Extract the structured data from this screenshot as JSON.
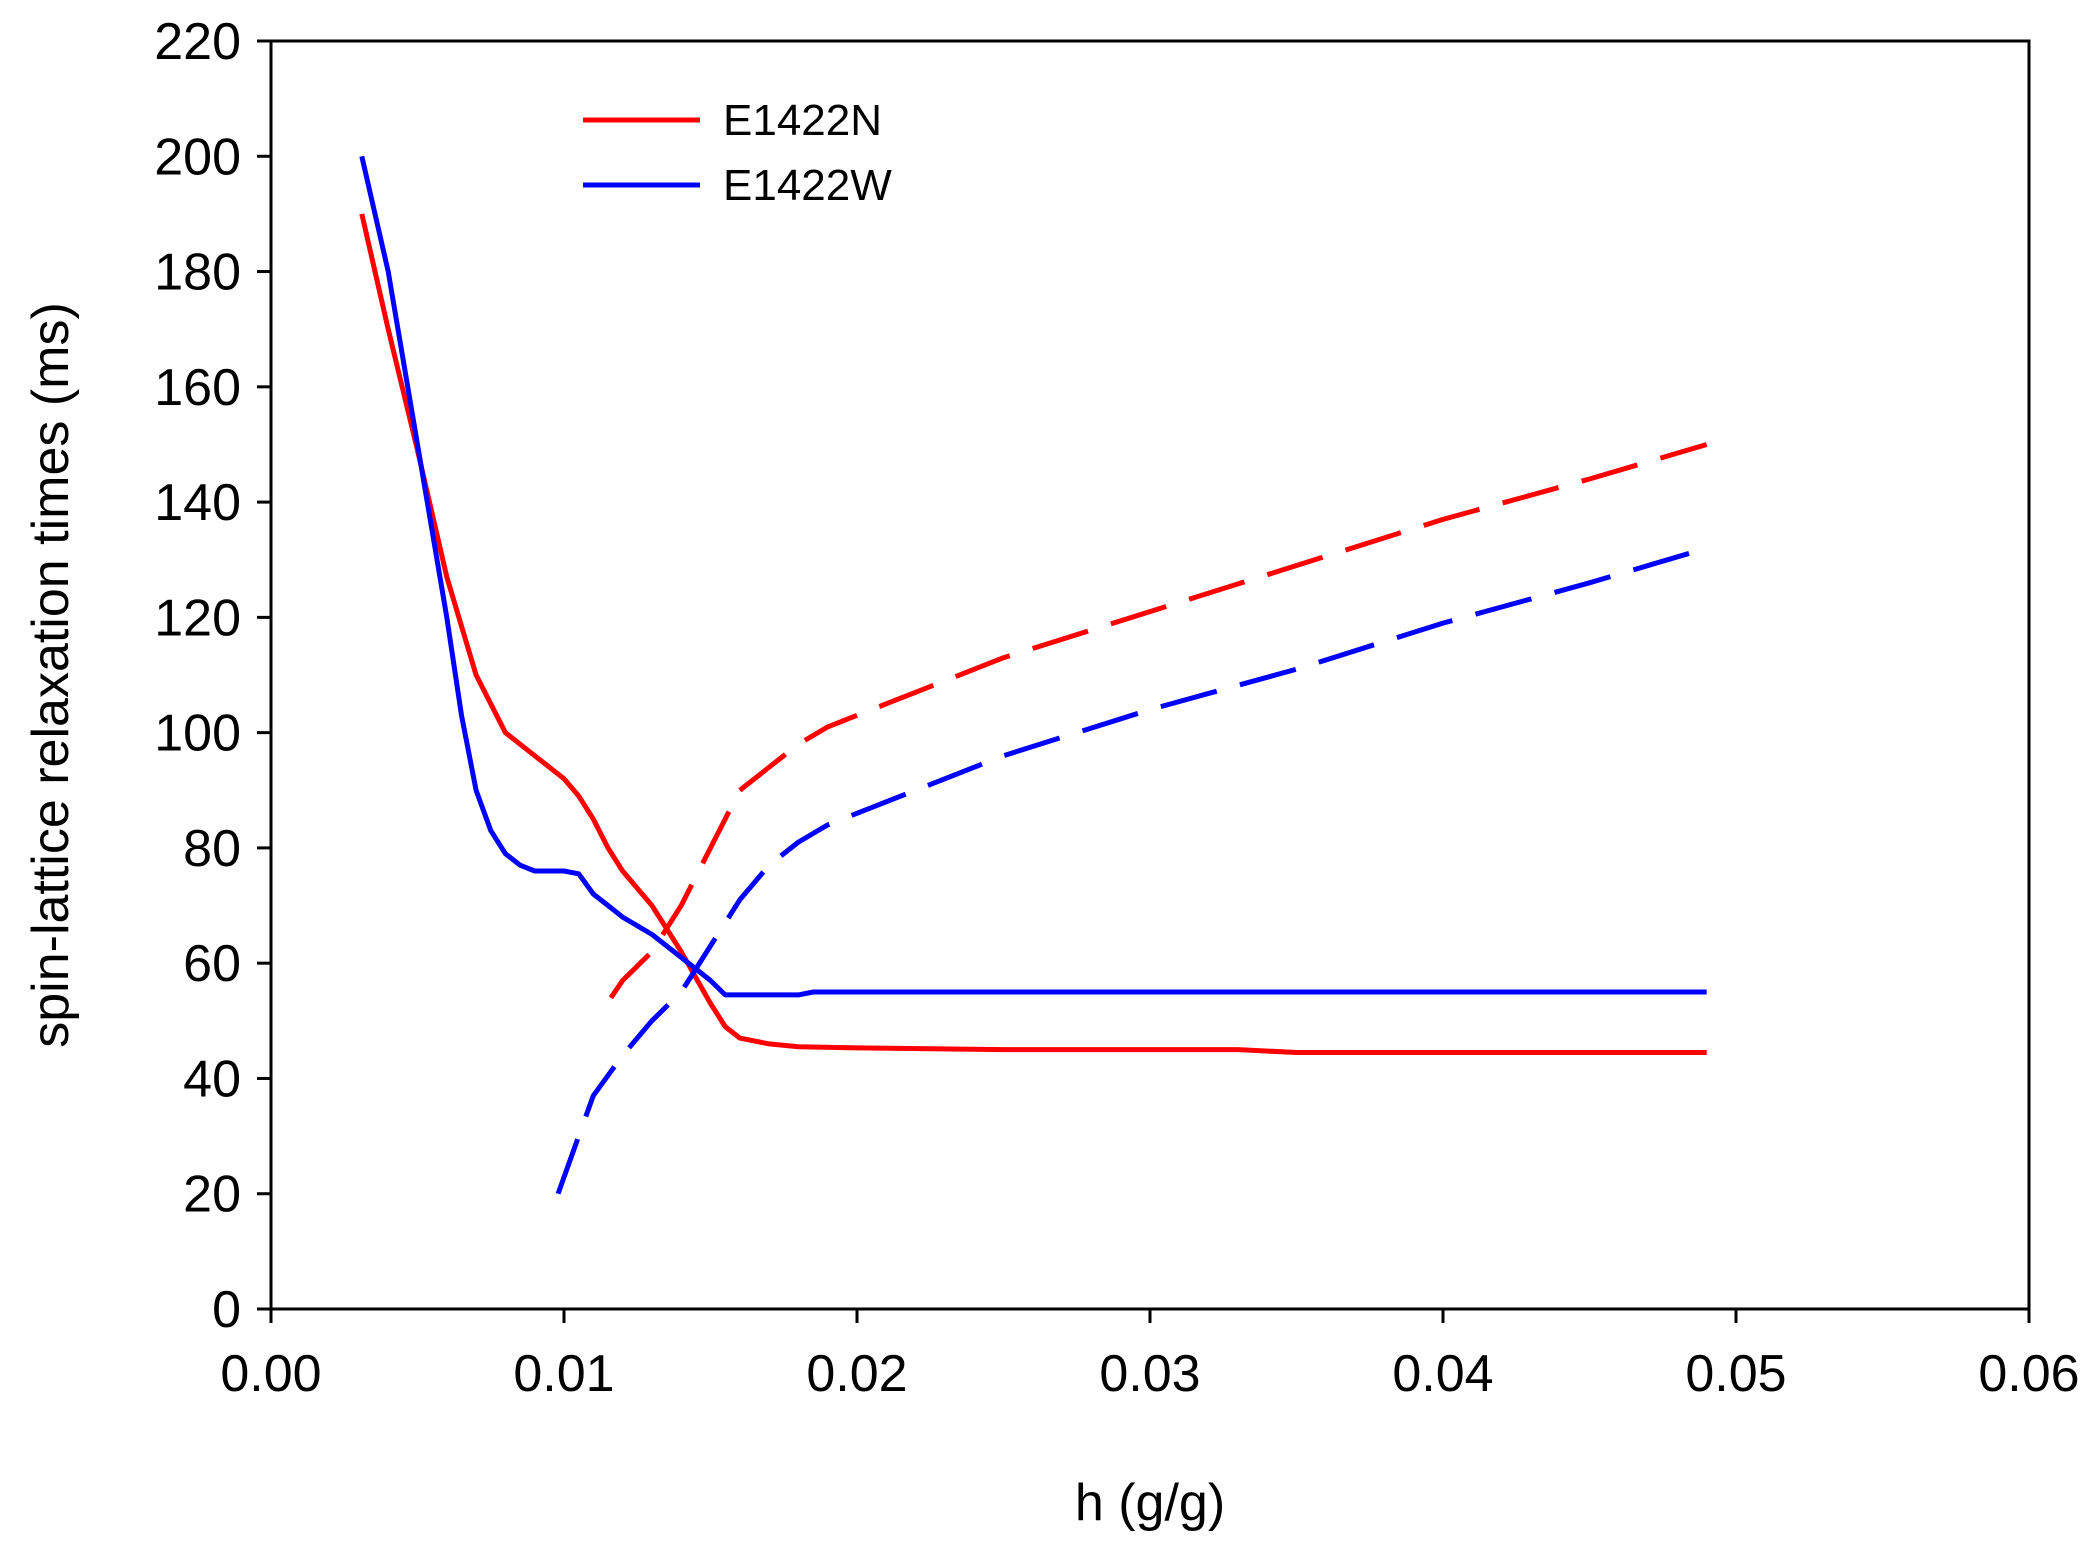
{
  "chart_data": {
    "type": "line",
    "xlabel": "h (g/g)",
    "ylabel": "spin-lattice relaxation times (ms)",
    "xlim": [
      0,
      0.06
    ],
    "ylim": [
      0,
      220
    ],
    "xticks": [
      0.0,
      0.01,
      0.02,
      0.03,
      0.04,
      0.05,
      0.06
    ],
    "xtick_labels": [
      "0.00",
      "0.01",
      "0.02",
      "0.03",
      "0.04",
      "0.05",
      "0.06"
    ],
    "yticks": [
      0,
      20,
      40,
      60,
      80,
      100,
      120,
      140,
      160,
      180,
      200,
      220
    ],
    "ytick_labels": [
      "0",
      "20",
      "40",
      "60",
      "80",
      "100",
      "120",
      "140",
      "160",
      "180",
      "200",
      "220"
    ],
    "grid": false,
    "legend_position": "top-left",
    "series": [
      {
        "name": "E1422N",
        "color": "#ff0000",
        "style": "solid",
        "x": [
          0.0031,
          0.004,
          0.005,
          0.006,
          0.007,
          0.008,
          0.009,
          0.0095,
          0.01,
          0.0105,
          0.011,
          0.0115,
          0.012,
          0.013,
          0.014,
          0.015,
          0.0155,
          0.016,
          0.017,
          0.018,
          0.02,
          0.025,
          0.03,
          0.033,
          0.035,
          0.04,
          0.045,
          0.049
        ],
        "y": [
          190,
          170,
          149,
          127,
          110,
          100,
          96,
          94,
          92,
          89,
          85,
          80,
          76,
          70,
          62,
          53,
          49,
          47,
          46,
          45.5,
          45.3,
          45,
          45,
          45,
          44.5,
          44.5,
          44.5,
          44.5
        ]
      },
      {
        "color": "#ff0000",
        "style": "dashed",
        "x": [
          0.0116,
          0.012,
          0.013,
          0.014,
          0.015,
          0.016,
          0.017,
          0.018,
          0.019,
          0.02,
          0.022,
          0.025,
          0.03,
          0.035,
          0.04,
          0.045,
          0.049
        ],
        "y": [
          54,
          57,
          62,
          70,
          80,
          90,
          94,
          98,
          101,
          103,
          107,
          113,
          121,
          129,
          137,
          144,
          150
        ]
      },
      {
        "name": "E1422W",
        "color": "#0000ff",
        "style": "solid",
        "x": [
          0.0031,
          0.004,
          0.005,
          0.006,
          0.0065,
          0.007,
          0.0075,
          0.008,
          0.0085,
          0.009,
          0.0095,
          0.01,
          0.0105,
          0.011,
          0.0115,
          0.012,
          0.013,
          0.014,
          0.015,
          0.0155,
          0.016,
          0.018,
          0.0185,
          0.019,
          0.02,
          0.025,
          0.03,
          0.035,
          0.04,
          0.045,
          0.049
        ],
        "y": [
          200,
          180,
          150,
          120,
          103,
          90,
          83,
          79,
          77,
          76,
          76,
          76,
          75.5,
          72,
          70,
          68,
          65,
          61,
          57,
          54.5,
          54.5,
          54.5,
          55,
          55,
          55,
          55,
          55,
          55,
          55,
          55,
          55
        ]
      },
      {
        "color": "#0000ff",
        "style": "dashed",
        "x": [
          0.0098,
          0.0105,
          0.011,
          0.012,
          0.013,
          0.014,
          0.015,
          0.016,
          0.017,
          0.018,
          0.019,
          0.02,
          0.022,
          0.025,
          0.03,
          0.035,
          0.04,
          0.045,
          0.049
        ],
        "y": [
          20,
          30,
          37,
          44,
          50,
          55,
          63,
          71,
          77,
          81,
          84,
          86,
          90,
          96,
          104,
          111,
          119,
          126,
          132
        ]
      }
    ]
  }
}
